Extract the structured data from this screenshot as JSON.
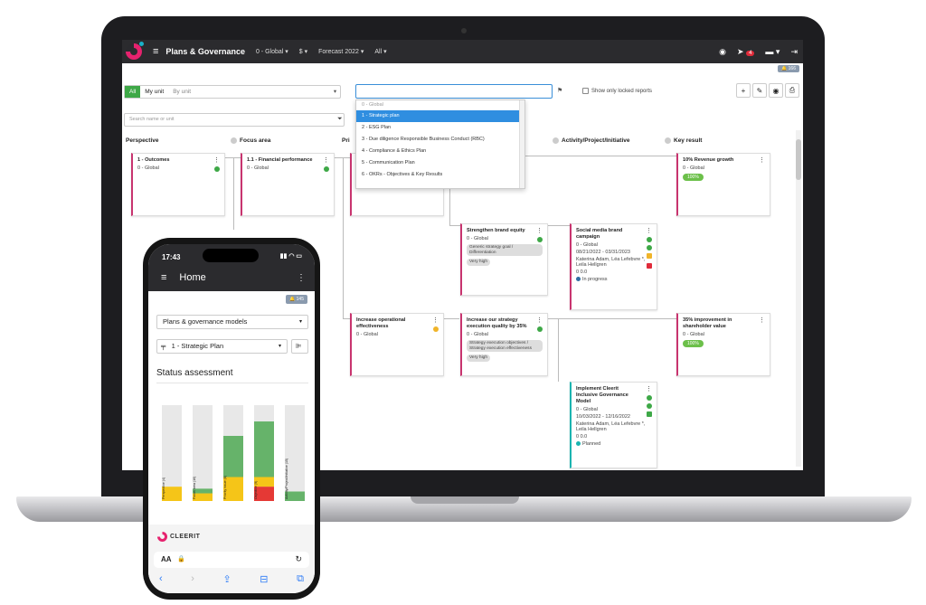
{
  "app": {
    "title": "Plans & Governance",
    "menus": [
      "0 - Global ▾",
      "$ ▾",
      "Forecast 2022 ▾",
      "All ▾"
    ],
    "notif_count": "4",
    "notif_chip": "166"
  },
  "filters": {
    "tab_all": "All",
    "tab_my_unit": "My unit",
    "by_unit": "By unit",
    "show_locked": "Show only locked reports",
    "search_placeholder": "Search name or unit"
  },
  "plan_dropdown": {
    "options": [
      "0 - Global",
      "1 - Strategic plan",
      "2 - ESG Plan",
      "3 - Due diligence Responsible Business Conduct (RBC)",
      "4 - Compliance & Ethics Plan",
      "5 - Communication Plan",
      "6 - OKRs - Objectives & Key Results"
    ],
    "selected_index": 1
  },
  "columns": [
    "Perspective",
    "Focus area",
    "Pri",
    "Activity/Project/Initiative",
    "Key result"
  ],
  "cards": {
    "outcomes": {
      "title": "1 - Outcomes",
      "unit": "0 - Global"
    },
    "financial": {
      "title": "1.1 - Financial performance",
      "unit": "0 - Global"
    },
    "revenue": {
      "title": "10% Revenue growth",
      "unit": "0 - Global",
      "pct": "100%"
    },
    "brand_equity": {
      "title": "Strengthen brand equity",
      "unit": "0 - Global",
      "tag": "Generic strategy goal / Differentiation",
      "priority": "Very high"
    },
    "social_media": {
      "title": "Social media brand campaign",
      "unit": "0 - Global",
      "dates": "08/21/2022 - 03/31/2023",
      "people": "Katerina Adam, Léa Lefebvre *, Leila Hellgren",
      "counts": "0   0.0",
      "status": "In progress"
    },
    "operational": {
      "title": "Increase operational effectiveness",
      "unit": "0 - Global"
    },
    "quality": {
      "title": "Increase our strategy execution quality by 35%",
      "unit": "0 - Global",
      "tag": "Strategy execution objectives / Strategy execution effectiveness",
      "priority": "Very high"
    },
    "shareholder": {
      "title": "35% improvement in shareholder value",
      "unit": "0 - Global",
      "pct": "100%"
    },
    "inclusive": {
      "title": "Implement Cleerit Inclusive Governance Model",
      "unit": "0 - Global",
      "dates": "10/03/2022 - 12/16/2022",
      "people": "Katerina Adam, Léa Lefebvre *, Leila Hellgren",
      "counts": "0   0.0",
      "status": "Planned"
    }
  },
  "phone": {
    "time": "17:43",
    "title": "Home",
    "chip": "145",
    "models_select": "Plans & governance models",
    "plan_select": "1 - Strategic Plan",
    "section_title": "Status assessment",
    "brand": "CLEERIT",
    "url_aa": "AA"
  },
  "chart_data": {
    "type": "bar",
    "stacked": true,
    "categories": [
      "Perspective (4)",
      "Focus area (10)",
      "Priority issue (8)",
      "Objective (9)",
      "Activity/Project/Initiative (15)"
    ],
    "series": [
      {
        "color": "#e53935",
        "values": [
          0,
          0,
          0,
          15,
          0
        ]
      },
      {
        "color": "#f5c518",
        "values": [
          15,
          8,
          25,
          10,
          0
        ]
      },
      {
        "color": "#66b36a",
        "values": [
          0,
          5,
          43,
          58,
          10
        ]
      },
      {
        "color": "#e8e8e8",
        "values": [
          85,
          87,
          32,
          17,
          90
        ]
      }
    ],
    "ylim": [
      0,
      100
    ]
  },
  "colors": {
    "accent_green": "#3ea847",
    "pink": "#c8346f",
    "teal": "#1ab4b0",
    "select_blue": "#2f8ee0"
  }
}
